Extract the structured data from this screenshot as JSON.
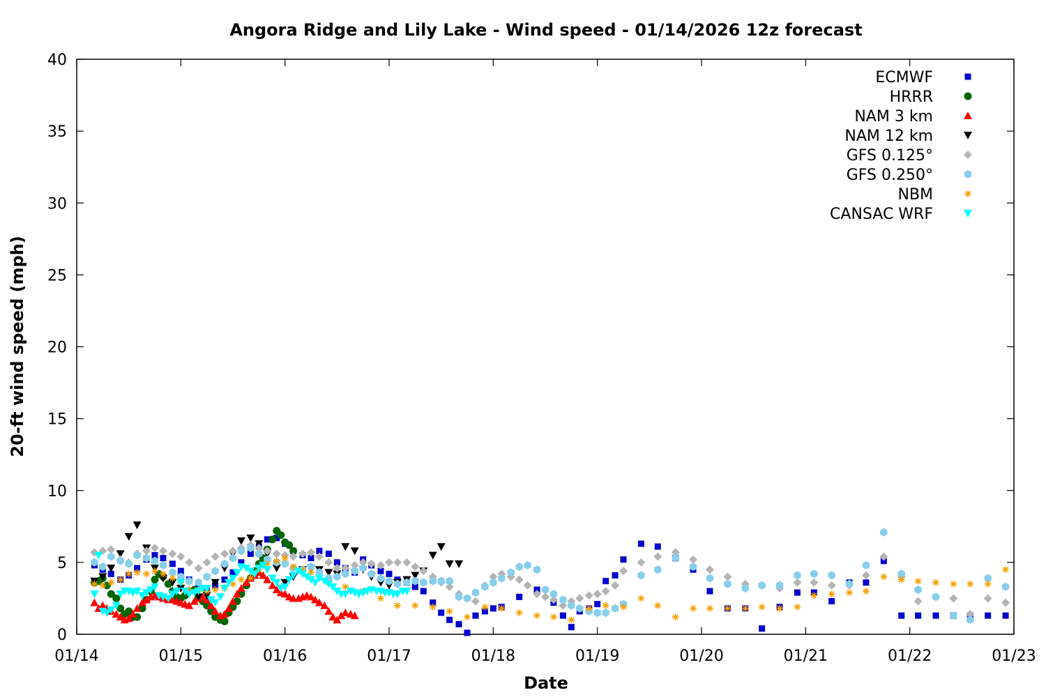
{
  "chart_data": {
    "type": "scatter",
    "title": "Angora Ridge and Lily Lake - Wind speed - 01/14/2026 12z forecast",
    "xlabel": "Date",
    "ylabel": "20-ft wind speed (mph)",
    "x_unit": "days since 01/14 00z",
    "xlim": [
      0,
      9
    ],
    "ylim": [
      0,
      40
    ],
    "x_ticks": [
      {
        "value": 0,
        "label": "01/14"
      },
      {
        "value": 1,
        "label": "01/15"
      },
      {
        "value": 2,
        "label": "01/16"
      },
      {
        "value": 3,
        "label": "01/17"
      },
      {
        "value": 4,
        "label": "01/18"
      },
      {
        "value": 5,
        "label": "01/19"
      },
      {
        "value": 6,
        "label": "01/20"
      },
      {
        "value": 7,
        "label": "01/21"
      },
      {
        "value": 8,
        "label": "01/22"
      },
      {
        "value": 9,
        "label": "01/23"
      }
    ],
    "y_ticks": [
      0,
      5,
      10,
      15,
      20,
      25,
      30,
      35,
      40
    ],
    "grid": false,
    "legend_position": "top-right",
    "series": [
      {
        "name": "ECMWF",
        "color": "#0000cc",
        "marker": "square",
        "x": [
          0.17,
          0.25,
          0.33,
          0.42,
          0.5,
          0.58,
          0.67,
          0.75,
          0.83,
          0.92,
          1.0,
          1.08,
          1.17,
          1.25,
          1.33,
          1.42,
          1.5,
          1.58,
          1.67,
          1.75,
          1.83,
          1.92,
          2.0,
          2.08,
          2.17,
          2.25,
          2.33,
          2.42,
          2.5,
          2.58,
          2.67,
          2.75,
          2.83,
          2.92,
          3.0,
          3.08,
          3.17,
          3.25,
          3.33,
          3.42,
          3.5,
          3.58,
          3.67,
          3.75,
          3.83,
          3.92,
          4.0,
          4.08,
          4.25,
          4.42,
          4.58,
          4.67,
          4.75,
          4.83,
          4.92,
          5.0,
          5.08,
          5.17,
          5.25,
          5.42,
          5.58,
          5.75,
          5.92,
          6.08,
          6.25,
          6.42,
          6.58,
          6.75,
          6.92,
          7.08,
          7.25,
          7.42,
          7.58,
          7.75,
          7.92,
          8.08,
          8.25,
          8.42,
          8.58,
          8.75,
          8.92
        ],
        "y": [
          4.8,
          4.5,
          4.2,
          3.8,
          4.1,
          4.6,
          5.2,
          5.5,
          5.3,
          4.9,
          4.4,
          3.8,
          3.5,
          3.2,
          3.4,
          3.8,
          4.3,
          5.0,
          5.6,
          6.1,
          6.6,
          6.7,
          6.3,
          5.8,
          5.5,
          5.3,
          5.8,
          5.6,
          5.0,
          4.6,
          4.3,
          5.2,
          4.8,
          4.4,
          4.2,
          3.8,
          3.6,
          3.3,
          3.0,
          2.2,
          1.5,
          1.0,
          0.7,
          0.1,
          1.3,
          1.6,
          1.8,
          1.9,
          2.6,
          3.1,
          2.2,
          1.3,
          0.5,
          1.6,
          1.8,
          2.1,
          3.7,
          4.1,
          5.2,
          6.3,
          6.1,
          5.3,
          4.5,
          3.0,
          1.8,
          1.8,
          0.4,
          1.9,
          2.9,
          2.9,
          2.3,
          3.6,
          3.6,
          5.1,
          1.3,
          1.3,
          1.3,
          1.3,
          1.3,
          1.3,
          1.3
        ]
      },
      {
        "name": "HRRR",
        "color": "#006400",
        "marker": "circle",
        "x": [
          0.17,
          0.21,
          0.25,
          0.29,
          0.33,
          0.38,
          0.42,
          0.46,
          0.5,
          0.54,
          0.58,
          0.63,
          0.67,
          0.71,
          0.75,
          0.79,
          0.83,
          0.88,
          0.92,
          0.96,
          1.0,
          1.04,
          1.08,
          1.13,
          1.17,
          1.21,
          1.25,
          1.29,
          1.33,
          1.38,
          1.42,
          1.46,
          1.5,
          1.54,
          1.58,
          1.63,
          1.67,
          1.71,
          1.75,
          1.79,
          1.83,
          1.88,
          1.92,
          1.96,
          2.0,
          2.04,
          2.08
        ],
        "y": [
          3.6,
          3.7,
          3.9,
          3.4,
          2.8,
          2.5,
          1.8,
          1.4,
          1.6,
          1.2,
          1.2,
          1.8,
          2.4,
          3.0,
          3.8,
          4.2,
          4.0,
          3.5,
          3.0,
          2.6,
          2.5,
          2.7,
          3.0,
          3.1,
          2.6,
          2.3,
          2.0,
          1.6,
          1.2,
          1.0,
          0.9,
          1.5,
          1.9,
          2.3,
          2.8,
          3.4,
          3.9,
          4.4,
          4.9,
          5.3,
          5.9,
          6.6,
          7.2,
          6.9,
          6.4,
          6.2,
          5.8
        ]
      },
      {
        "name": "NAM 3 km",
        "color": "#ff0000",
        "marker": "triangle-up",
        "x": [
          0.17,
          0.21,
          0.25,
          0.29,
          0.33,
          0.38,
          0.42,
          0.46,
          0.5,
          0.54,
          0.58,
          0.63,
          0.67,
          0.71,
          0.75,
          0.79,
          0.83,
          0.88,
          0.92,
          0.96,
          1.0,
          1.04,
          1.08,
          1.13,
          1.17,
          1.21,
          1.25,
          1.29,
          1.33,
          1.38,
          1.42,
          1.46,
          1.5,
          1.54,
          1.58,
          1.63,
          1.67,
          1.71,
          1.75,
          1.79,
          1.83,
          1.88,
          1.92,
          1.96,
          2.0,
          2.04,
          2.08,
          2.13,
          2.17,
          2.21,
          2.25,
          2.29,
          2.33,
          2.38,
          2.42,
          2.46,
          2.5,
          2.54,
          2.58,
          2.63,
          2.67
        ],
        "y": [
          2.2,
          1.8,
          2.0,
          1.8,
          1.6,
          1.4,
          1.2,
          1.0,
          1.1,
          1.4,
          1.8,
          2.2,
          2.4,
          2.6,
          2.7,
          2.6,
          2.5,
          2.4,
          2.4,
          2.3,
          2.2,
          2.1,
          2.0,
          2.3,
          2.5,
          2.6,
          2.4,
          2.0,
          1.6,
          1.3,
          1.4,
          1.8,
          2.3,
          2.8,
          3.2,
          3.6,
          3.9,
          4.1,
          4.3,
          4.1,
          3.8,
          3.4,
          3.1,
          2.9,
          2.8,
          2.6,
          2.5,
          2.5,
          2.6,
          2.7,
          2.6,
          2.4,
          2.2,
          2.0,
          1.6,
          1.2,
          1.0,
          1.3,
          1.5,
          1.4,
          1.3
        ]
      },
      {
        "name": "NAM 12 km",
        "color": "#000000",
        "marker": "triangle-down",
        "x": [
          0.17,
          0.25,
          0.33,
          0.42,
          0.5,
          0.58,
          0.67,
          0.75,
          0.83,
          0.92,
          1.0,
          1.08,
          1.17,
          1.25,
          1.33,
          1.42,
          1.5,
          1.58,
          1.67,
          1.75,
          1.83,
          1.92,
          2.0,
          2.08,
          2.17,
          2.25,
          2.33,
          2.42,
          2.5,
          2.58,
          2.67,
          2.75,
          2.83,
          2.92,
          3.0,
          3.08,
          3.17,
          3.25,
          3.33,
          3.42,
          3.5,
          3.58,
          3.67
        ],
        "y": [
          3.7,
          4.0,
          4.6,
          5.6,
          6.8,
          7.6,
          6.0,
          4.6,
          3.9,
          3.6,
          3.2,
          2.9,
          2.6,
          2.7,
          3.6,
          4.6,
          5.6,
          6.5,
          6.7,
          6.3,
          5.6,
          4.6,
          3.6,
          4.0,
          4.5,
          4.6,
          4.5,
          4.3,
          4.2,
          6.1,
          5.8,
          4.5,
          4.0,
          3.6,
          3.4,
          3.6,
          3.8,
          4.1,
          4.4,
          5.5,
          6.1,
          4.9,
          4.9
        ]
      },
      {
        "name": "GFS 0.125°",
        "color": "#b4b4b4",
        "marker": "diamond",
        "x": [
          0.17,
          0.25,
          0.33,
          0.42,
          0.5,
          0.58,
          0.67,
          0.75,
          0.83,
          0.92,
          1.0,
          1.08,
          1.17,
          1.25,
          1.33,
          1.42,
          1.5,
          1.58,
          1.67,
          1.75,
          1.83,
          1.92,
          2.0,
          2.08,
          2.17,
          2.25,
          2.33,
          2.42,
          2.5,
          2.58,
          2.67,
          2.75,
          2.83,
          2.92,
          3.0,
          3.08,
          3.17,
          3.25,
          3.33,
          3.42,
          3.5,
          3.58,
          3.67,
          3.75,
          3.83,
          3.92,
          4.0,
          4.08,
          4.17,
          4.25,
          4.33,
          4.42,
          4.5,
          4.58,
          4.67,
          4.75,
          4.83,
          4.92,
          5.0,
          5.08,
          5.17,
          5.25,
          5.42,
          5.58,
          5.75,
          5.92,
          6.08,
          6.25,
          6.42,
          6.58,
          6.75,
          6.92,
          7.08,
          7.25,
          7.42,
          7.58,
          7.75,
          7.92,
          8.08,
          8.25,
          8.42,
          8.58,
          8.75,
          8.92
        ],
        "y": [
          5.7,
          5.8,
          5.9,
          5.2,
          5.0,
          5.6,
          5.8,
          6.0,
          5.8,
          5.6,
          5.4,
          5.0,
          4.6,
          5.0,
          5.4,
          5.6,
          5.8,
          6.0,
          6.2,
          6.0,
          5.8,
          5.6,
          5.5,
          5.4,
          5.6,
          5.7,
          5.4,
          5.0,
          4.6,
          4.6,
          4.8,
          5.0,
          4.9,
          4.8,
          5.0,
          5.0,
          5.0,
          4.7,
          4.4,
          4.0,
          3.6,
          3.3,
          2.8,
          2.5,
          2.3,
          3.4,
          4.0,
          4.2,
          4.0,
          3.8,
          3.4,
          2.8,
          2.6,
          2.4,
          2.0,
          2.3,
          2.5,
          2.7,
          2.8,
          3.0,
          3.4,
          4.4,
          5.0,
          5.4,
          5.7,
          5.2,
          4.5,
          4.0,
          3.5,
          3.4,
          3.2,
          3.6,
          3.6,
          3.4,
          3.4,
          4.1,
          5.4,
          4.0,
          2.3,
          2.6,
          2.5,
          1.4,
          2.5,
          2.2
        ]
      },
      {
        "name": "GFS 0.250°",
        "color": "#87ceeb",
        "marker": "hexagon",
        "x": [
          0.17,
          0.25,
          0.33,
          0.42,
          0.5,
          0.58,
          0.67,
          0.75,
          0.83,
          0.92,
          1.0,
          1.08,
          1.17,
          1.25,
          1.33,
          1.42,
          1.5,
          1.58,
          1.67,
          1.75,
          1.83,
          1.92,
          2.0,
          2.08,
          2.17,
          2.25,
          2.33,
          2.42,
          2.5,
          2.58,
          2.67,
          2.75,
          2.83,
          2.92,
          3.0,
          3.08,
          3.17,
          3.25,
          3.33,
          3.42,
          3.5,
          3.58,
          3.67,
          3.75,
          3.83,
          3.92,
          4.0,
          4.08,
          4.17,
          4.25,
          4.33,
          4.42,
          4.5,
          4.58,
          4.67,
          4.75,
          4.83,
          4.92,
          5.0,
          5.08,
          5.17,
          5.25,
          5.42,
          5.58,
          5.75,
          5.92,
          6.08,
          6.25,
          6.42,
          6.58,
          6.75,
          6.92,
          7.08,
          7.25,
          7.42,
          7.58,
          7.75,
          7.92,
          8.08,
          8.25,
          8.42,
          8.58,
          8.75,
          8.92
        ],
        "y": [
          5.0,
          4.7,
          5.4,
          5.1,
          4.9,
          5.5,
          5.3,
          5.1,
          4.8,
          4.3,
          4.0,
          3.7,
          3.6,
          4.0,
          4.4,
          4.9,
          5.3,
          5.8,
          6.0,
          5.6,
          5.2,
          5.0,
          4.9,
          4.6,
          4.5,
          4.7,
          4.3,
          3.9,
          4.0,
          4.2,
          4.4,
          4.6,
          4.2,
          3.9,
          3.7,
          3.5,
          3.6,
          3.7,
          3.6,
          3.7,
          3.7,
          3.7,
          2.6,
          2.5,
          2.9,
          3.3,
          3.6,
          3.9,
          4.3,
          4.7,
          4.8,
          4.5,
          3.1,
          2.8,
          2.4,
          2.0,
          1.8,
          1.6,
          1.5,
          1.5,
          1.8,
          2.1,
          4.1,
          4.5,
          5.3,
          4.7,
          3.9,
          3.5,
          3.2,
          3.4,
          3.4,
          4.1,
          4.2,
          4.1,
          3.5,
          4.8,
          7.1,
          4.2,
          3.1,
          2.6,
          1.3,
          1.0,
          3.9,
          3.3
        ]
      },
      {
        "name": "NBM",
        "color": "#f5a000",
        "marker": "asterisk",
        "x": [
          0.17,
          0.25,
          0.33,
          0.42,
          0.5,
          0.58,
          0.67,
          0.75,
          0.83,
          0.92,
          1.0,
          1.08,
          1.17,
          1.25,
          1.33,
          1.42,
          1.5,
          1.58,
          1.67,
          1.75,
          1.83,
          1.92,
          2.0,
          2.08,
          2.17,
          2.25,
          2.42,
          2.58,
          2.75,
          2.92,
          3.08,
          3.25,
          3.42,
          3.58,
          3.75,
          3.92,
          4.08,
          4.25,
          4.42,
          4.58,
          4.75,
          4.92,
          5.08,
          5.25,
          5.42,
          5.58,
          5.75,
          5.92,
          6.08,
          6.25,
          6.42,
          6.58,
          6.75,
          6.92,
          7.08,
          7.25,
          7.42,
          7.58,
          7.75,
          7.92,
          8.08,
          8.25,
          8.42,
          8.58,
          8.75,
          8.92
        ],
        "y": [
          3.5,
          3.4,
          3.6,
          3.8,
          4.2,
          4.3,
          4.2,
          4.4,
          4.2,
          3.9,
          3.6,
          3.1,
          3.0,
          3.0,
          3.1,
          3.2,
          3.5,
          3.8,
          3.9,
          4.5,
          4.9,
          5.1,
          5.3,
          4.7,
          4.5,
          4.3,
          3.6,
          3.3,
          3.0,
          2.5,
          2.0,
          2.0,
          1.9,
          1.6,
          1.2,
          1.9,
          1.8,
          1.5,
          1.3,
          1.2,
          1.0,
          1.8,
          2.0,
          1.9,
          2.5,
          2.0,
          1.2,
          1.8,
          1.8,
          1.8,
          1.8,
          1.9,
          1.8,
          1.9,
          2.7,
          2.8,
          2.9,
          3.0,
          4.0,
          3.8,
          3.7,
          3.6,
          3.5,
          3.5,
          3.5,
          4.5
        ]
      },
      {
        "name": "CANSAC WRF",
        "color": "#00ffff",
        "marker": "triangle-down",
        "x": [
          0.17,
          0.21,
          0.25,
          0.29,
          0.33,
          0.38,
          0.42,
          0.46,
          0.5,
          0.54,
          0.58,
          0.63,
          0.67,
          0.71,
          0.75,
          0.79,
          0.83,
          0.88,
          0.92,
          0.96,
          1.0,
          1.04,
          1.08,
          1.13,
          1.17,
          1.21,
          1.25,
          1.29,
          1.33,
          1.38,
          1.42,
          1.46,
          1.5,
          1.54,
          1.58,
          1.63,
          1.67,
          1.71,
          1.75,
          1.79,
          1.83,
          1.88,
          1.92,
          1.96,
          2.0,
          2.04,
          2.08,
          2.13,
          2.17,
          2.21,
          2.25,
          2.29,
          2.33,
          2.38,
          2.42,
          2.46,
          2.5,
          2.54,
          2.58,
          2.63,
          2.67,
          2.71,
          2.75,
          2.79,
          2.83,
          2.88,
          2.92,
          2.96,
          3.0,
          3.04,
          3.08,
          3.13,
          3.17
        ],
        "y": [
          2.8,
          5.5,
          1.6,
          1.5,
          1.7,
          2.0,
          2.8,
          3.0,
          3.0,
          2.9,
          3.0,
          2.7,
          2.9,
          3.1,
          3.3,
          2.7,
          2.6,
          2.5,
          2.8,
          3.0,
          3.6,
          3.0,
          2.8,
          2.9,
          3.0,
          3.2,
          3.2,
          2.4,
          2.2,
          2.6,
          3.2,
          3.6,
          3.9,
          4.3,
          4.7,
          4.6,
          4.4,
          4.2,
          4.6,
          4.8,
          4.5,
          3.9,
          3.6,
          3.2,
          3.3,
          3.8,
          4.1,
          4.4,
          4.2,
          4.0,
          3.8,
          3.6,
          3.9,
          3.7,
          3.5,
          3.3,
          3.0,
          2.8,
          2.8,
          3.0,
          2.9,
          2.8,
          2.9,
          3.0,
          3.1,
          3.0,
          3.0,
          2.9,
          2.9,
          2.8,
          2.8,
          3.0,
          3.0
        ]
      }
    ]
  }
}
